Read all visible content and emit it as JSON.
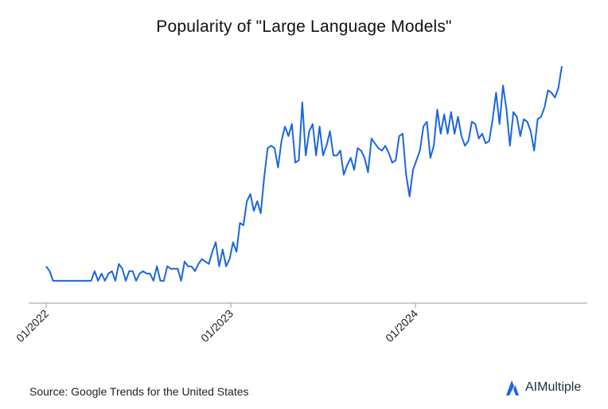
{
  "chart_data": {
    "type": "line",
    "title": "Popularity of \"Large Language Models\"",
    "xlabel": "",
    "ylabel": "",
    "ylim": [
      0,
      100
    ],
    "grid": false,
    "x_ticks": [
      "01/2022",
      "01/2023",
      "01/2024"
    ],
    "series": [
      {
        "color": "#1a66e0",
        "values": [
          10,
          8,
          4,
          4,
          4,
          4,
          4,
          4,
          4,
          4,
          4,
          4,
          4,
          4,
          8,
          4,
          7,
          4,
          7,
          8,
          4,
          11,
          9,
          4,
          8,
          8,
          4,
          7,
          8,
          7,
          7,
          4,
          10,
          4,
          4,
          10,
          9,
          9,
          9,
          4,
          12,
          10,
          10,
          8,
          11,
          13,
          12,
          11,
          16,
          20,
          10,
          17,
          10,
          13,
          20,
          16,
          28,
          27,
          37,
          40,
          33,
          37,
          32,
          47,
          59,
          60,
          59,
          51,
          62,
          68,
          64,
          69,
          53,
          54,
          78,
          56,
          66,
          69,
          56,
          68,
          56,
          60,
          66,
          56,
          56,
          58,
          48,
          52,
          55,
          50,
          59,
          58,
          55,
          49,
          63,
          61,
          59,
          58,
          60,
          57,
          53,
          54,
          64,
          65,
          48,
          39,
          50,
          54,
          58,
          68,
          70,
          55,
          60,
          75,
          65,
          73,
          65,
          74,
          65,
          72,
          64,
          60,
          62,
          70,
          69,
          63,
          65,
          61,
          62,
          71,
          82,
          69,
          85,
          75,
          60,
          74,
          72,
          64,
          71,
          70,
          66,
          58,
          71,
          72,
          76,
          83,
          82,
          80,
          84,
          93
        ]
      }
    ]
  },
  "footer": {
    "source": "Source: Google Trends for the United States",
    "brand": "AIMultiple",
    "brand_color": "#1a66e0",
    "logo_icon": "aimultiple-logo-icon"
  }
}
